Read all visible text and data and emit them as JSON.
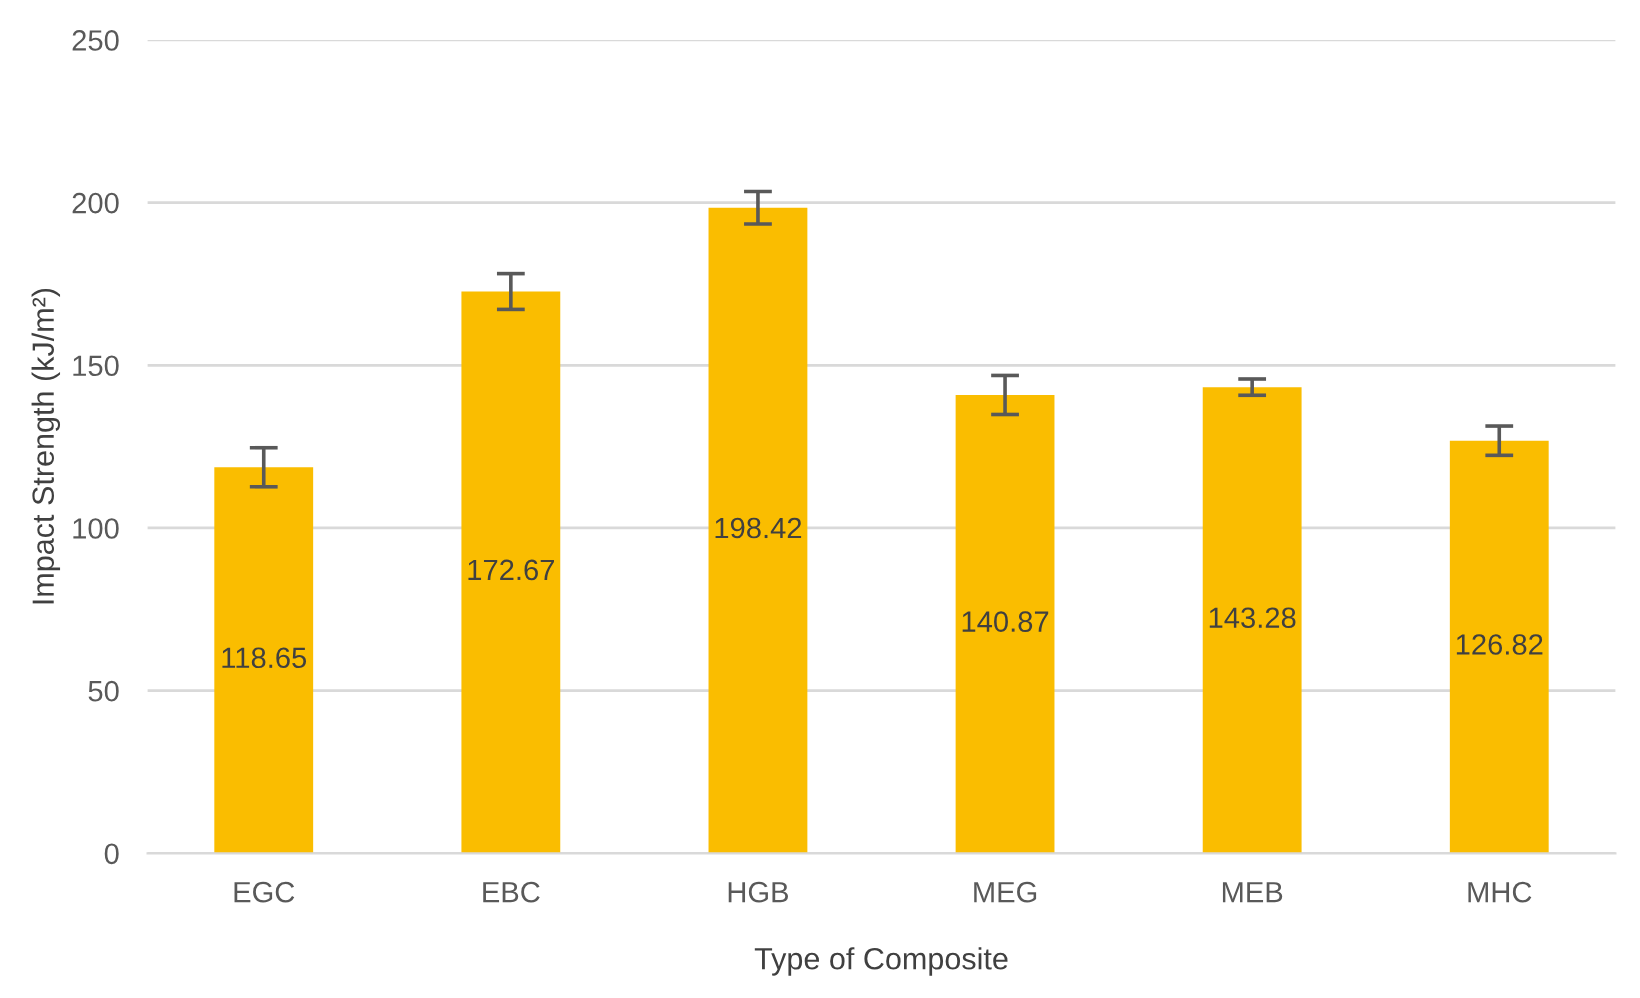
{
  "chart_data": {
    "type": "bar",
    "xlabel": "Type of Composite",
    "ylabel": "Impact Strength (kJ/m²)",
    "categories": [
      "EGC",
      "EBC",
      "HGB",
      "MEG",
      "MEB",
      "MHC"
    ],
    "values": [
      118.65,
      172.67,
      198.42,
      140.87,
      143.28,
      126.82
    ],
    "errors": [
      6,
      5.5,
      5,
      6,
      2.5,
      4.5
    ],
    "color": "#fabd00",
    "data_labels": true,
    "ylim": [
      0,
      250
    ],
    "yticks": [
      0,
      50,
      100,
      150,
      200,
      250
    ],
    "grid": "y"
  }
}
